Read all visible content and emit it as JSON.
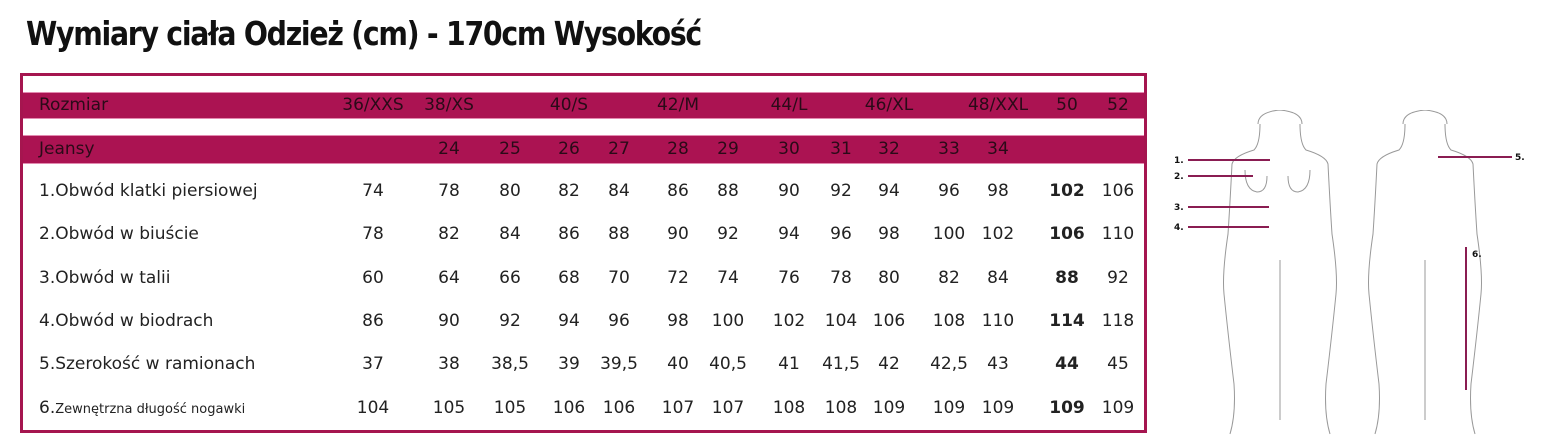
{
  "title": "Wymiary ciała Odzież (cm) - 170cm Wysokość",
  "accent_color": "#ab1352",
  "size_row": {
    "label": "Rozmiar",
    "values": [
      "36/XXS",
      "38/XS",
      "",
      "40/S",
      "",
      "42/M",
      "",
      "44/L",
      "",
      "46/XL",
      "",
      "48/XXL",
      "50",
      "52"
    ]
  },
  "jeans_row": {
    "label": "Jeansy",
    "values": [
      "",
      "24",
      "25",
      "26",
      "27",
      "28",
      "29",
      "30",
      "31",
      "32",
      "33",
      "34",
      "",
      ""
    ]
  },
  "rows": [
    {
      "label": "1.Obwód klatki piersiowej",
      "values": [
        "74",
        "78",
        "80",
        "82",
        "84",
        "86",
        "88",
        "90",
        "92",
        "94",
        "96",
        "98",
        "102",
        "106"
      ]
    },
    {
      "label": "2.Obwód w biuście",
      "values": [
        "78",
        "82",
        "84",
        "86",
        "88",
        "90",
        "92",
        "94",
        "96",
        "98",
        "100",
        "102",
        "106",
        "110"
      ]
    },
    {
      "label": "3.Obwód w talii",
      "values": [
        "60",
        "64",
        "66",
        "68",
        "70",
        "72",
        "74",
        "76",
        "78",
        "80",
        "82",
        "84",
        "88",
        "92"
      ]
    },
    {
      "label": "4.Obwód w biodrach",
      "values": [
        "86",
        "90",
        "92",
        "94",
        "96",
        "98",
        "100",
        "102",
        "104",
        "106",
        "108",
        "110",
        "114",
        "118"
      ]
    },
    {
      "label": "5.Szerokość w ramionach",
      "values": [
        "37",
        "38",
        "38,5",
        "39",
        "39,5",
        "40",
        "40,5",
        "41",
        "41,5",
        "42",
        "42,5",
        "43",
        "44",
        "45"
      ]
    },
    {
      "label_prefix": "6.",
      "label": "Zewnętrzna długość nogawki",
      "values": [
        "104",
        "105",
        "105",
        "106",
        "106",
        "107",
        "107",
        "108",
        "108",
        "109",
        "109",
        "109",
        "109",
        "109"
      ]
    }
  ],
  "figure_labels": [
    "1.",
    "2.",
    "3.",
    "4.",
    "5.",
    "6."
  ]
}
